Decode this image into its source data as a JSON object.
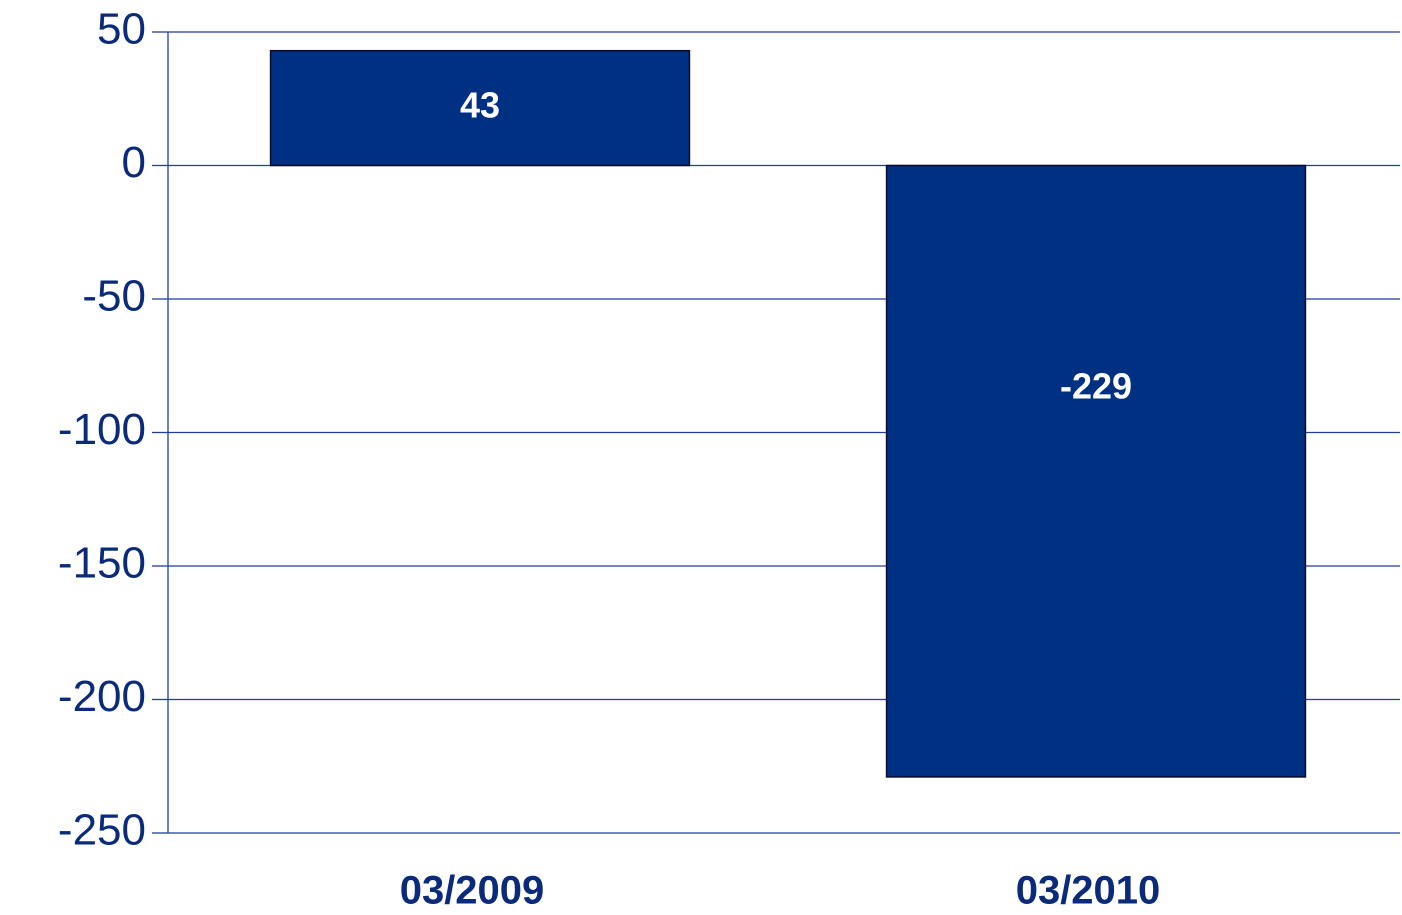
{
  "chart_data": {
    "type": "bar",
    "categories": [
      "03/2009",
      "03/2010"
    ],
    "values": [
      43,
      -229
    ],
    "color": "#003082",
    "ylim": [
      -250,
      50
    ],
    "yticks": [
      -250,
      -200,
      -150,
      -100,
      -50,
      0,
      50
    ],
    "grid": true
  }
}
